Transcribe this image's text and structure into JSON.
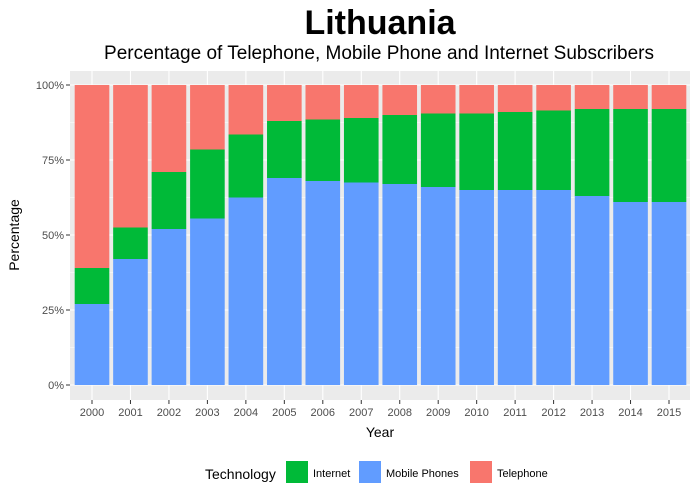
{
  "chart_data": {
    "type": "bar",
    "stacked": true,
    "title": "Lithuania",
    "subtitle": "Percentage of Telephone, Mobile Phone and Internet Subscribers",
    "xlabel": "Year",
    "ylabel": "Percentage",
    "ylim": [
      0,
      100
    ],
    "y_ticks": [
      "0%",
      "25%",
      "50%",
      "75%",
      "100%"
    ],
    "y_tick_values": [
      0,
      25,
      50,
      75,
      100
    ],
    "grid": true,
    "legend_position": "bottom",
    "legend_title": "Technology",
    "categories": [
      "2000",
      "2001",
      "2002",
      "2003",
      "2004",
      "2005",
      "2006",
      "2007",
      "2008",
      "2009",
      "2010",
      "2011",
      "2012",
      "2013",
      "2014",
      "2015"
    ],
    "series": [
      {
        "name": "Mobile Phones",
        "color": "#619CFF",
        "values": [
          27,
          42,
          52,
          55.5,
          62.5,
          69,
          68,
          67.5,
          67,
          66,
          65,
          65,
          65,
          63,
          61,
          61
        ]
      },
      {
        "name": "Internet",
        "color": "#00BA38",
        "values": [
          12,
          10.5,
          19,
          23,
          21,
          19,
          20.5,
          21.5,
          23,
          24.5,
          25.5,
          26,
          26.5,
          29,
          31,
          31
        ]
      },
      {
        "name": "Telephone",
        "color": "#F8766D",
        "values": [
          61,
          47.5,
          29,
          21.5,
          16.5,
          12,
          11.5,
          11,
          10,
          9.5,
          9.5,
          9,
          8.5,
          8,
          8,
          8
        ]
      }
    ],
    "legend_order": [
      "Internet",
      "Mobile Phones",
      "Telephone"
    ],
    "panel_background": "#EBEBEB",
    "grid_color": "#FFFFFF"
  }
}
